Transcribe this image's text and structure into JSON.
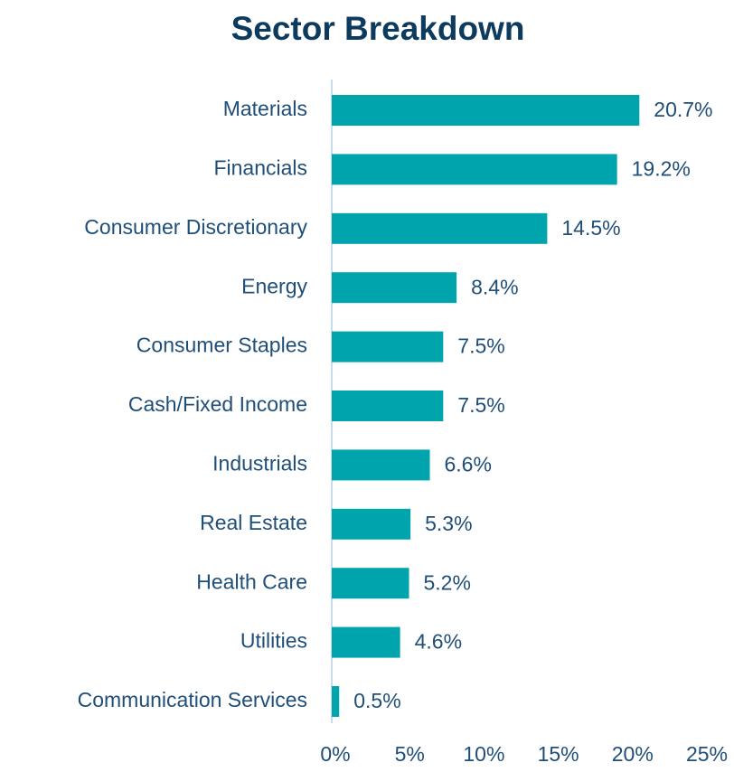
{
  "chart_data": {
    "type": "bar",
    "orientation": "horizontal",
    "title": "Sector Breakdown",
    "categories": [
      "Materials",
      "Financials",
      "Consumer Discretionary",
      "Energy",
      "Consumer Staples",
      "Cash/Fixed Income",
      "Industrials",
      "Real Estate",
      "Health Care",
      "Utilities",
      "Communication Services"
    ],
    "values": [
      20.7,
      19.2,
      14.5,
      8.4,
      7.5,
      7.5,
      6.6,
      5.3,
      5.2,
      4.6,
      0.5
    ],
    "value_labels": [
      "20.7%",
      "19.2%",
      "14.5%",
      "8.4%",
      "7.5%",
      "7.5%",
      "6.6%",
      "5.3%",
      "5.2%",
      "4.6%",
      "0.5%"
    ],
    "color": "#00a4ad",
    "xlim": [
      0,
      25
    ],
    "xticks": [
      {
        "value": 0,
        "label": "0%"
      },
      {
        "value": 5,
        "label": "5%"
      },
      {
        "value": 10,
        "label": "10%"
      },
      {
        "value": 15,
        "label": "15%"
      },
      {
        "value": 20,
        "label": "20%"
      },
      {
        "value": 25,
        "label": "25%"
      }
    ],
    "grid": false
  }
}
